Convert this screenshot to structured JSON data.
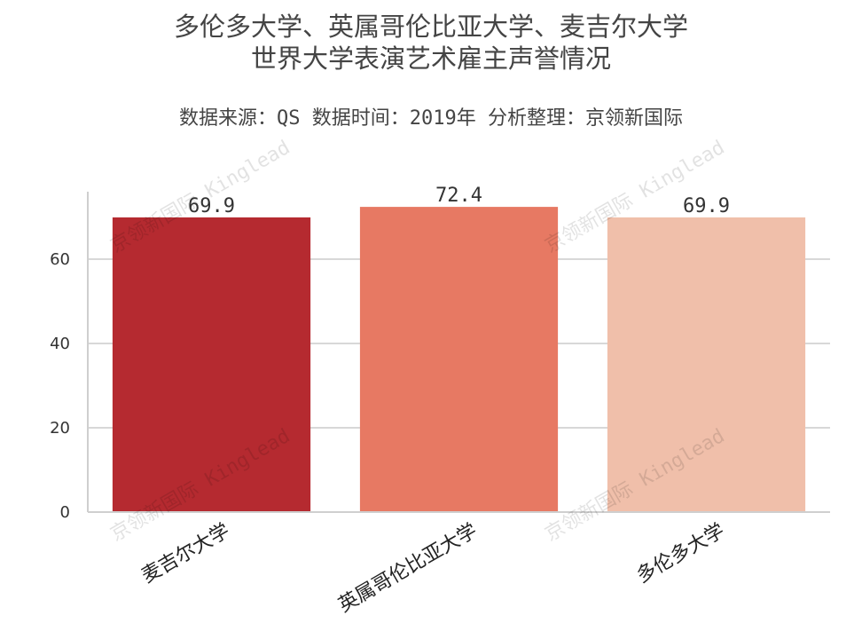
{
  "chart_data": {
    "type": "bar",
    "title_lines": [
      "多伦多大学、英属哥伦比亚大学、麦吉尔大学",
      "世界大学表演艺术雇主声誉情况"
    ],
    "subtitle": "数据来源：QS 数据时间：2019年 分析整理：京领新国际",
    "categories": [
      "麦吉尔大学",
      "英属哥伦比亚大学",
      "多伦多大学"
    ],
    "values": [
      69.9,
      72.4,
      69.9
    ],
    "data_labels": [
      "69.9",
      "72.4",
      "69.9"
    ],
    "colors": [
      "#b52a30",
      "#e77963",
      "#f0bfaa"
    ],
    "yticks": [
      0,
      20,
      40,
      60
    ],
    "ylim": [
      0,
      76
    ],
    "grid": true,
    "watermark": "京领新国际 Kinglead"
  }
}
